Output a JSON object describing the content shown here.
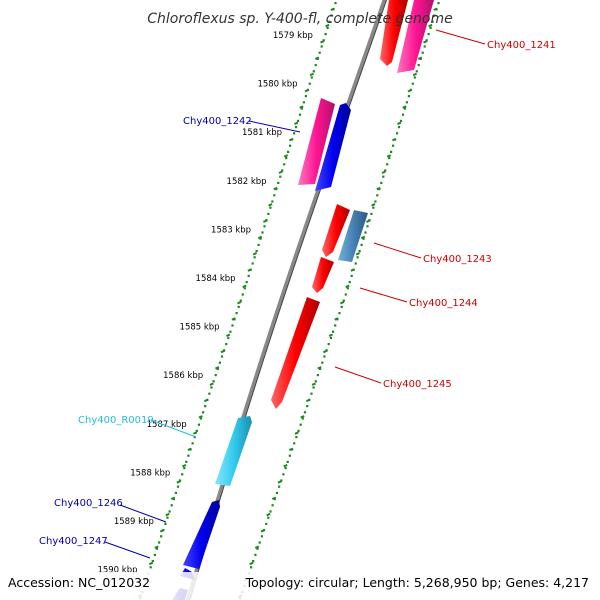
{
  "title": "Chloroflexus sp. Y-400-fl, complete genome",
  "footer": {
    "accession": "Accession: NC_012032",
    "summary": "Topology: circular; Length: 5,268,950 bp; Genes: 4,217"
  },
  "colors": {
    "ruler_dots": "#1a8a1a",
    "backbone": "#888888",
    "forward_gene": "#ff0000",
    "reverse_gene": "#0000ee",
    "pseudo_gene": "#ff1493",
    "rna_gene": "#33ccee",
    "other_gene": "#4682b4",
    "label_red": "#cc0000",
    "label_blue": "#0000aa",
    "label_cyan": "#22bbdd"
  },
  "ruler": {
    "ticks": [
      {
        "kbp": 1579,
        "label": "1579 kbp"
      },
      {
        "kbp": 1580,
        "label": "1580 kbp"
      },
      {
        "kbp": 1581,
        "label": "1581 kbp"
      },
      {
        "kbp": 1582,
        "label": "1582 kbp"
      },
      {
        "kbp": 1583,
        "label": "1583 kbp"
      },
      {
        "kbp": 1584,
        "label": "1584 kbp"
      },
      {
        "kbp": 1585,
        "label": "1585 kbp"
      },
      {
        "kbp": 1586,
        "label": "1586 kbp"
      },
      {
        "kbp": 1587,
        "label": "1587 kbp"
      },
      {
        "kbp": 1588,
        "label": "1588 kbp"
      },
      {
        "kbp": 1589,
        "label": "1589 kbp"
      },
      {
        "kbp": 1590,
        "label": "1590 kbp"
      }
    ]
  },
  "gene_labels": [
    {
      "id": "g1241",
      "text": "Chy400_1241",
      "color": "label_red"
    },
    {
      "id": "g1242",
      "text": "Chy400_1242",
      "color": "label_blue"
    },
    {
      "id": "g1243",
      "text": "Chy400_1243",
      "color": "label_red"
    },
    {
      "id": "g1244",
      "text": "Chy400_1244",
      "color": "label_red"
    },
    {
      "id": "g1245",
      "text": "Chy400_1245",
      "color": "label_red"
    },
    {
      "id": "gR0019",
      "text": "Chy400_R0019",
      "color": "label_cyan"
    },
    {
      "id": "g1246",
      "text": "Chy400_1246",
      "color": "label_blue"
    },
    {
      "id": "g1247",
      "text": "Chy400_1247",
      "color": "label_blue"
    }
  ]
}
